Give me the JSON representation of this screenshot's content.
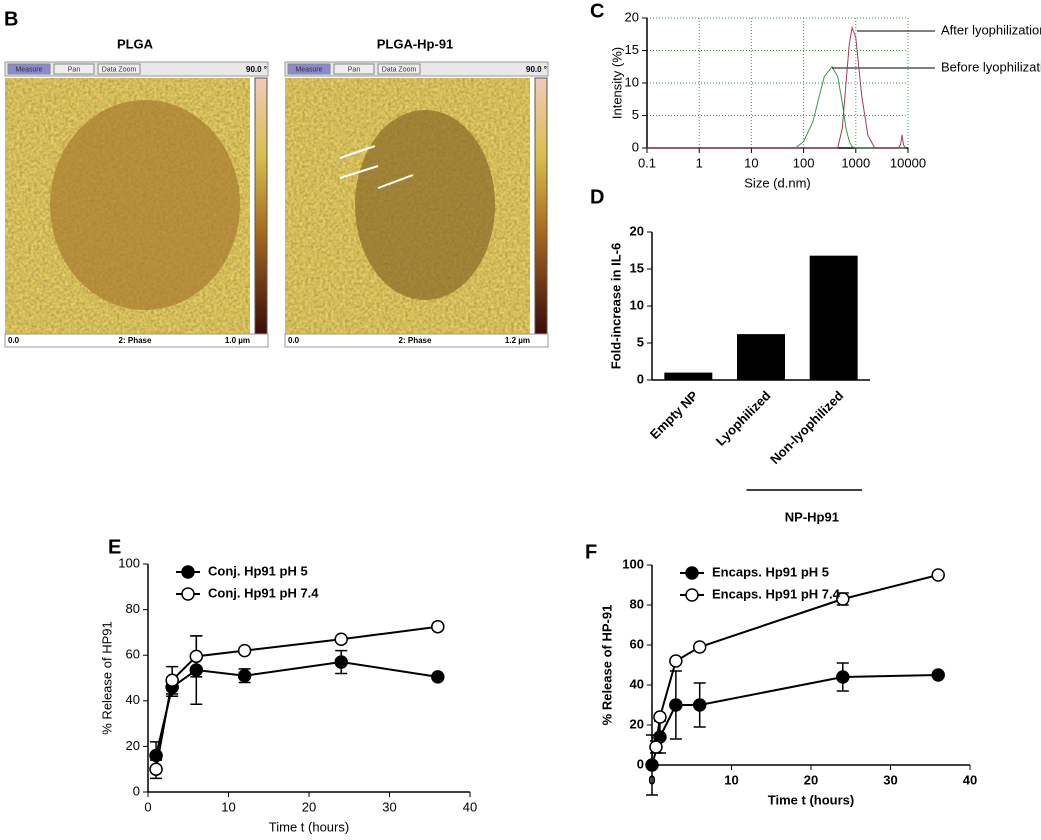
{
  "panel_b": {
    "panel": "B",
    "images": [
      {
        "title": "PLGA",
        "toolbar": [
          "Measure",
          "Pan",
          "Data Zoom"
        ],
        "scale_max": "90.0 °",
        "axis_start": "0.0",
        "channel": "2: Phase",
        "axis_end": "1.0 µm"
      },
      {
        "title": "PLGA-Hp-91",
        "toolbar": [
          "Measure",
          "Pan",
          "Data Zoom"
        ],
        "scale_max": "90.0 °",
        "axis_start": "0.0",
        "channel": "2: Phase",
        "axis_end": "1.2 µm"
      }
    ]
  },
  "chart_data": [
    {
      "panel": "C",
      "type": "line",
      "x_label": "Size (d.nm)",
      "y_label": "Intensity (%)",
      "xlog": true,
      "grid": true,
      "grid_color": "#3a9a4a",
      "xlim": [
        0.1,
        10000
      ],
      "xticks": [
        0.1,
        1,
        10,
        100,
        1000,
        10000
      ],
      "ylim": [
        0,
        20
      ],
      "yticks": [
        0,
        5,
        10,
        15,
        20
      ],
      "x": [
        0.1,
        70,
        100,
        150,
        200,
        250,
        350,
        450,
        550,
        650,
        750,
        850,
        1000,
        1300,
        1700,
        2300,
        6500,
        7200,
        7700,
        8200,
        9000
      ],
      "series": [
        {
          "name": "Before lyophilization",
          "color": "#3a9a4a",
          "values": [
            0,
            0,
            1,
            4,
            8,
            11,
            12.5,
            11,
            7,
            3,
            1,
            0.2,
            0,
            0,
            0,
            0,
            0,
            0,
            0,
            0,
            0
          ]
        },
        {
          "name": "After lyophilization",
          "color": "#a03c5c",
          "values": [
            0,
            0,
            0,
            0,
            0,
            0,
            0,
            0,
            3,
            10,
            16,
            18.5,
            17,
            8,
            2,
            0,
            0,
            0.5,
            2,
            0.5,
            0
          ]
        }
      ]
    },
    {
      "panel": "D",
      "type": "bar",
      "y_label": "Fold-increase in IL-6",
      "color": "#000000",
      "categories": [
        "Empty NP",
        "Lyophilized",
        "Non-lyophilized"
      ],
      "values": [
        1,
        6.2,
        16.8
      ],
      "ylim": [
        0,
        20
      ],
      "yticks": [
        0,
        5,
        10,
        15,
        20
      ],
      "group_label": "NP-Hp91"
    },
    {
      "panel": "E",
      "type": "line",
      "x_label": "Time t (hours)",
      "y_label": "% Release of HP91",
      "legend": "upper left",
      "xlim": [
        0,
        40
      ],
      "xticks": [
        0,
        10,
        20,
        30,
        40
      ],
      "ylim": [
        0,
        100
      ],
      "yticks": [
        0,
        20,
        40,
        60,
        80,
        100
      ],
      "series": [
        {
          "name": "Conj. Hp91 pH 5",
          "color": "#000000",
          "marker_fill": "#000000",
          "x": [
            1,
            3,
            6,
            12,
            24,
            36
          ],
          "values": [
            16,
            46,
            53.5,
            51,
            57,
            50.5
          ],
          "errors": [
            6,
            4,
            15,
            3,
            5,
            0
          ]
        },
        {
          "name": "Conj. Hp91 pH 7.4",
          "color": "#000000",
          "marker_fill": "#ffffff",
          "x": [
            1,
            3,
            6,
            12,
            24,
            36
          ],
          "values": [
            10,
            49,
            59.5,
            62,
            67,
            72.5
          ],
          "errors": [
            4,
            6,
            9,
            0,
            0,
            0
          ]
        }
      ]
    },
    {
      "panel": "F",
      "type": "line",
      "x_label": "Time t (hours)",
      "y_label": "% Release of HP-91",
      "legend": "upper left",
      "xlim": [
        0,
        40
      ],
      "xticks": [
        0,
        10,
        20,
        30,
        40
      ],
      "ylim": [
        0,
        100
      ],
      "yticks": [
        0,
        20,
        40,
        60,
        80,
        100
      ],
      "series": [
        {
          "name": "Encaps. Hp91  pH 5",
          "color": "#000000",
          "marker_fill": "#000000",
          "x": [
            0,
            1,
            3,
            6,
            24,
            36
          ],
          "values": [
            0,
            14,
            30,
            30,
            44,
            45
          ],
          "errors": [
            15,
            8,
            17,
            11,
            7,
            0
          ]
        },
        {
          "name": "Encaps. Hp91  pH 7.4",
          "color": "#000000",
          "marker_fill": "#ffffff",
          "x": [
            0.5,
            1,
            3,
            6,
            24,
            36
          ],
          "values": [
            9,
            24,
            52,
            59,
            83,
            95
          ],
          "errors": [
            3,
            0,
            0,
            0,
            3,
            0
          ]
        }
      ]
    }
  ]
}
